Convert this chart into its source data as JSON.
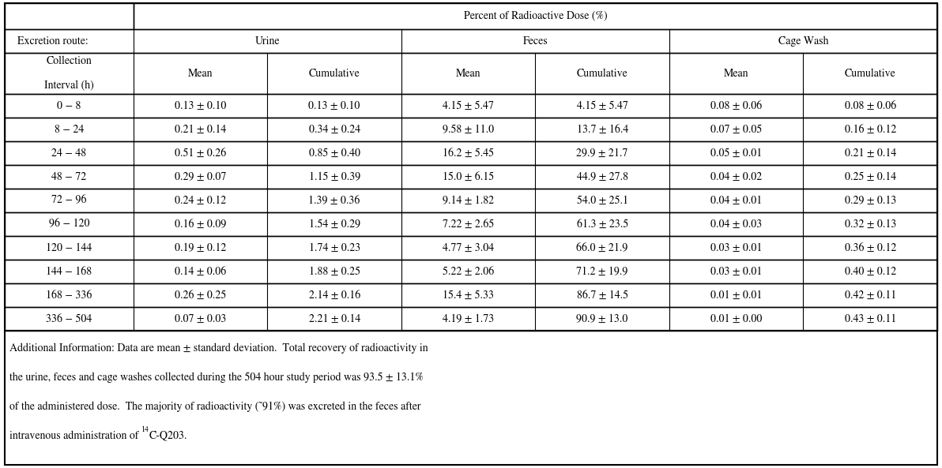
{
  "title": "Percent of Radioactive Dose (%)",
  "excretion_route_label": "Excretion route:",
  "col_groups": [
    "Urine",
    "Feces",
    "Cage Wash"
  ],
  "col_subheaders": [
    "Mean",
    "Cumulative",
    "Mean",
    "Cumulative",
    "Mean",
    "Cumulative"
  ],
  "row_labels": [
    "0 − 8",
    "8 − 24",
    "24 − 48",
    "48 − 72",
    "72 − 96",
    "96 − 120",
    "120 − 144",
    "144 − 168",
    "168 − 336",
    "336 − 504"
  ],
  "data": [
    [
      "0.13 ± 0.10",
      "0.13 ± 0.10",
      "4.15 ± 5.47",
      "4.15 ± 5.47",
      "0.08 ± 0.06",
      "0.08 ± 0.06"
    ],
    [
      "0.21 ± 0.14",
      "0.34 ± 0.24",
      "9.58 ± 11.0",
      "13.7 ± 16.4",
      "0.07 ± 0.05",
      "0.16 ± 0.12"
    ],
    [
      "0.51 ± 0.26",
      "0.85 ± 0.40",
      "16.2 ± 5.45",
      "29.9 ± 21.7",
      "0.05 ± 0.01",
      "0.21 ± 0.14"
    ],
    [
      "0.29 ± 0.07",
      "1.15 ± 0.39",
      "15.0 ± 6.15",
      "44.9 ± 27.8",
      "0.04 ± 0.02",
      "0.25 ± 0.14"
    ],
    [
      "0.24 ± 0.12",
      "1.39 ± 0.36",
      "9.14 ± 1.82",
      "54.0 ± 25.1",
      "0.04 ± 0.01",
      "0.29 ± 0.13"
    ],
    [
      "0.16 ± 0.09",
      "1.54 ± 0.29",
      "7.22 ± 2.65",
      "61.3 ± 23.5",
      "0.04 ± 0.03",
      "0.32 ± 0.13"
    ],
    [
      "0.19 ± 0.12",
      "1.74 ± 0.23",
      "4.77 ± 3.04",
      "66.0 ± 21.9",
      "0.03 ± 0.01",
      "0.36 ± 0.12"
    ],
    [
      "0.14 ± 0.06",
      "1.88 ± 0.25",
      "5.22 ± 2.06",
      "71.2 ± 19.9",
      "0.03 ± 0.01",
      "0.40 ± 0.12"
    ],
    [
      "0.26 ± 0.25",
      "2.14 ± 0.16",
      "15.4 ± 5.33",
      "86.7 ± 14.5",
      "0.01 ± 0.01",
      "0.42 ± 0.11"
    ],
    [
      "0.07 ± 0.03",
      "2.21 ± 0.14",
      "4.19 ± 1.73",
      "90.9 ± 13.0",
      "0.01 ± 0.00",
      "0.43 ± 0.11"
    ]
  ],
  "footnote_line1": "Additional Information: Data are mean ± standard deviation.  Total recovery of radioactivity in",
  "footnote_line2": "the urine, feces and cage washes collected during the 504 hour study period was 93.5 ± 13.1%",
  "footnote_line3": "of the administered dose.  The majority of radioactivity (˜91%) was excreted in the feces after",
  "footnote_line4_pre": "intravenous administration of ",
  "footnote_line4_sup": "14",
  "footnote_line4_post": "C-Q203.",
  "bg_color": "white",
  "font_size": 10.0,
  "font_family": "STIXGeneral"
}
